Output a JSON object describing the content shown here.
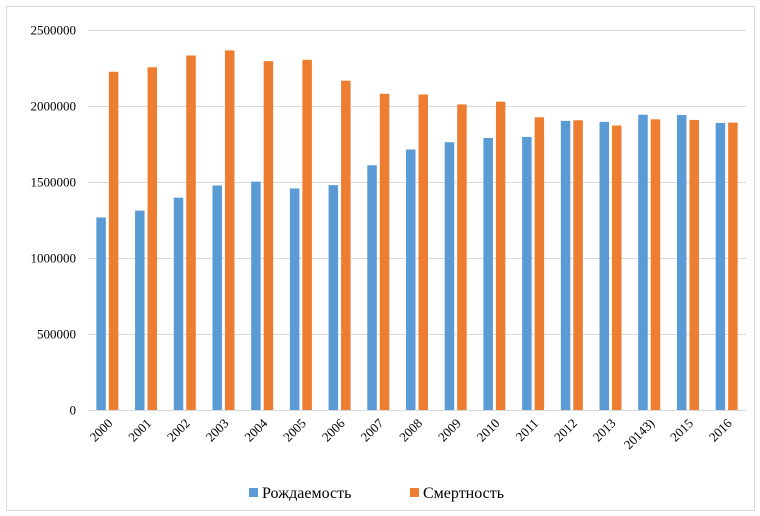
{
  "chart_data": {
    "type": "bar",
    "title": "",
    "xlabel": "",
    "ylabel": "",
    "categories": [
      "2000",
      "2001",
      "2002",
      "2003",
      "2004",
      "2005",
      "2006",
      "2007",
      "2008",
      "2009",
      "2010",
      "2011",
      "2012",
      "2013",
      "20143)",
      "2015",
      "2016"
    ],
    "series": [
      {
        "name": "Рождаемость",
        "color": "#5b9bd5",
        "values": [
          1266800,
          1311600,
          1397000,
          1477300,
          1502500,
          1457400,
          1479600,
          1610100,
          1713900,
          1761700,
          1789600,
          1796600,
          1902100,
          1895800,
          1942700,
          1940600,
          1888700
        ]
      },
      {
        "name": "Смертность",
        "color": "#ed7d31",
        "values": [
          2225300,
          2254900,
          2332300,
          2365800,
          2295400,
          2303900,
          2166700,
          2080400,
          2075900,
          2010500,
          2028500,
          1925700,
          1906300,
          1871800,
          1912300,
          1908500,
          1891000
        ]
      }
    ],
    "ylim": [
      0,
      2500000
    ],
    "yticks": [
      0,
      500000,
      1000000,
      1500000,
      2000000,
      2500000
    ],
    "ytick_labels": [
      "0",
      "500000",
      "1000000",
      "1500000",
      "2000000",
      "2500000"
    ],
    "grid": true,
    "legend": "bottom-center"
  }
}
